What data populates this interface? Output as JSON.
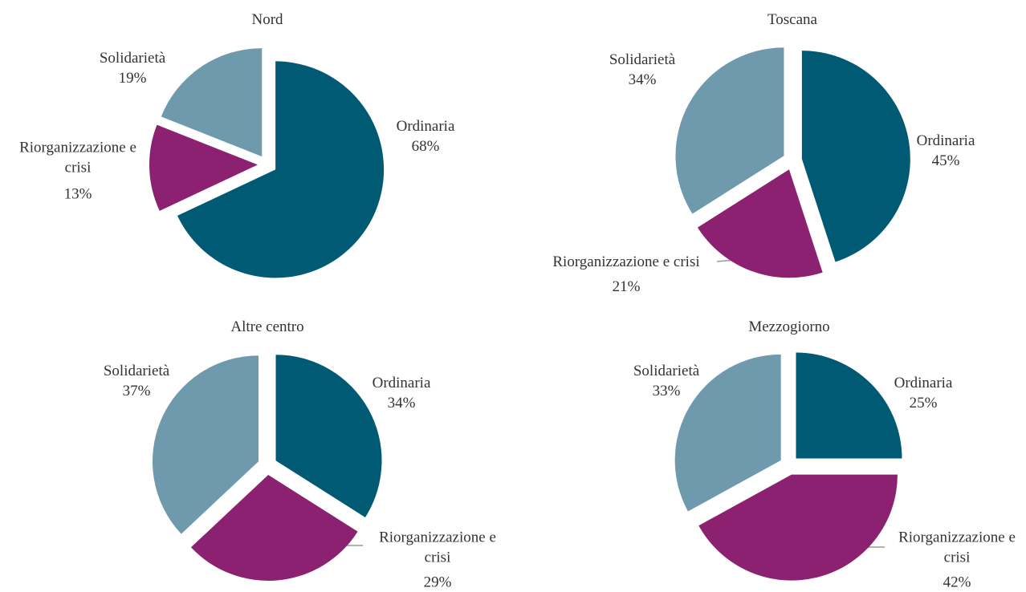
{
  "chart_data": [
    {
      "type": "pie",
      "title": "Nord",
      "categories": [
        "Ordinaria",
        "Riorganizzazione e crisi",
        "Solidarietà"
      ],
      "values": [
        68,
        13,
        19
      ],
      "value_labels": [
        "68%",
        "13%",
        "19%"
      ],
      "colors": [
        "#005a73",
        "#8b2170",
        "#6f9aae"
      ]
    },
    {
      "type": "pie",
      "title": "Toscana",
      "categories": [
        "Ordinaria",
        "Riorganizzazione e crisi",
        "Solidarietà"
      ],
      "values": [
        45,
        21,
        34
      ],
      "value_labels": [
        "45%",
        "21%",
        "34%"
      ],
      "colors": [
        "#005a73",
        "#8b2170",
        "#6f9aae"
      ]
    },
    {
      "type": "pie",
      "title": "Altre centro",
      "categories": [
        "Ordinaria",
        "Riorganizzazione e crisi",
        "Solidarietà"
      ],
      "values": [
        34,
        29,
        37
      ],
      "value_labels": [
        "34%",
        "29%",
        "37%"
      ],
      "colors": [
        "#005a73",
        "#8b2170",
        "#6f9aae"
      ]
    },
    {
      "type": "pie",
      "title": "Mezzogiorno",
      "categories": [
        "Ordinaria",
        "Riorganizzazione e crisi",
        "Solidarietà"
      ],
      "values": [
        25,
        42,
        33
      ],
      "value_labels": [
        "25%",
        "42%",
        "33%"
      ],
      "colors": [
        "#005a73",
        "#8b2170",
        "#6f9aae"
      ]
    }
  ]
}
